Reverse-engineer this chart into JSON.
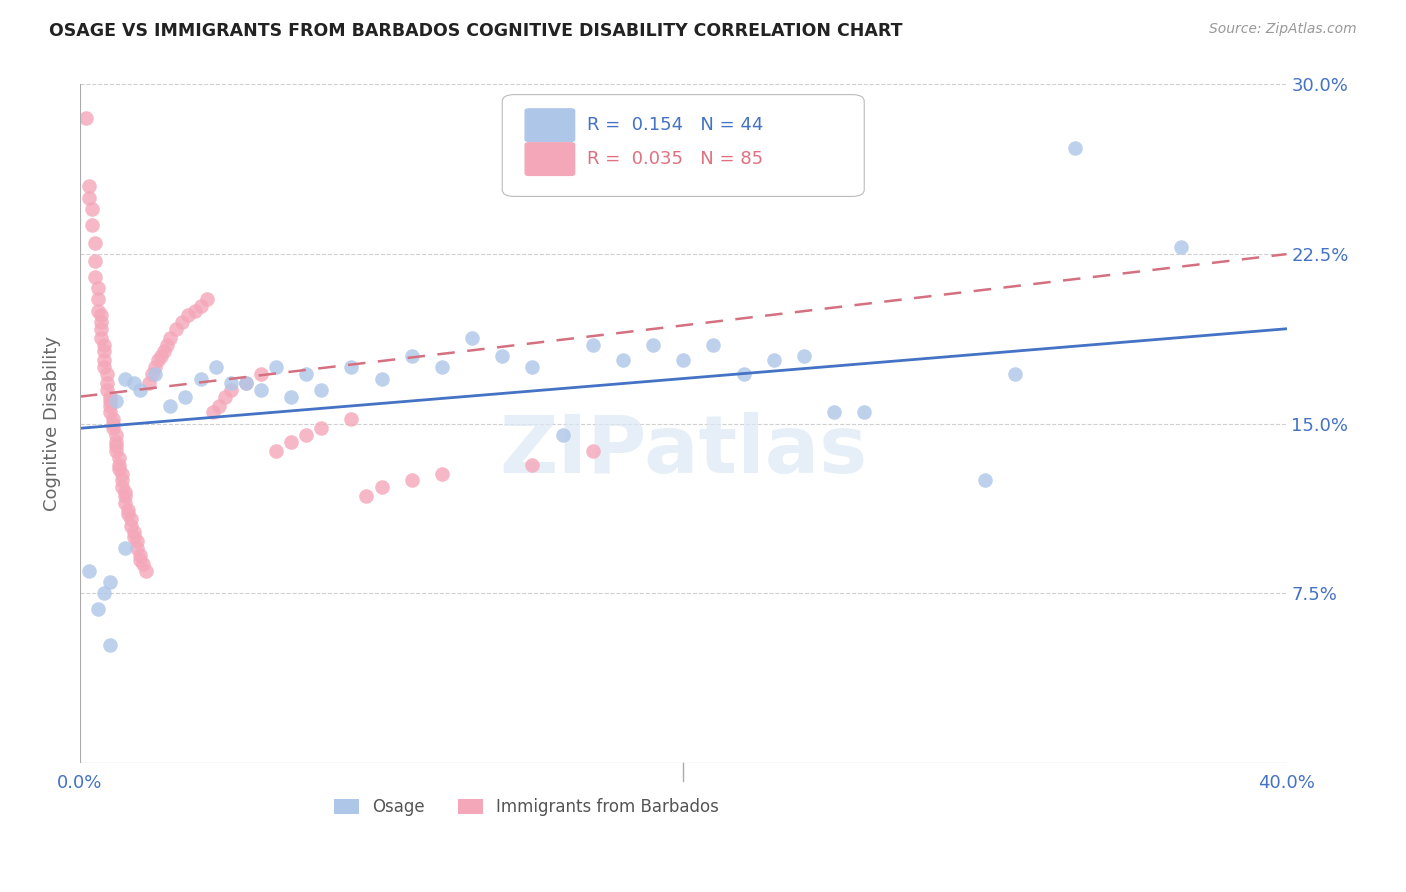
{
  "title": "OSAGE VS IMMIGRANTS FROM BARBADOS COGNITIVE DISABILITY CORRELATION CHART",
  "source": "Source: ZipAtlas.com",
  "ylabel": "Cognitive Disability",
  "xmin": 0.0,
  "xmax": 0.4,
  "ymin": 0.0,
  "ymax": 0.3,
  "ytick_positions": [
    0.0,
    0.075,
    0.15,
    0.225,
    0.3
  ],
  "ytick_labels": [
    "",
    "7.5%",
    "15.0%",
    "22.5%",
    "30.0%"
  ],
  "xtick_positions": [
    0.0,
    0.05,
    0.1,
    0.15,
    0.2,
    0.25,
    0.3,
    0.35,
    0.4
  ],
  "xtick_labels": [
    "0.0%",
    "",
    "",
    "",
    "",
    "",
    "",
    "",
    "40.0%"
  ],
  "watermark": "ZIPatlas",
  "osage_color": "#aec6e8",
  "barbados_color": "#f4a7b9",
  "osage_line_color": "#4472c4",
  "barbados_line_color": "#d47080",
  "osage_N": 44,
  "barbados_N": 85,
  "osage_x": [
    0.003,
    0.006,
    0.008,
    0.01,
    0.012,
    0.015,
    0.018,
    0.02,
    0.025,
    0.03,
    0.035,
    0.04,
    0.045,
    0.05,
    0.055,
    0.06,
    0.065,
    0.07,
    0.075,
    0.08,
    0.09,
    0.1,
    0.11,
    0.12,
    0.13,
    0.14,
    0.15,
    0.16,
    0.17,
    0.18,
    0.19,
    0.2,
    0.21,
    0.22,
    0.23,
    0.24,
    0.25,
    0.26,
    0.3,
    0.31,
    0.33,
    0.365,
    0.01,
    0.015
  ],
  "osage_y": [
    0.085,
    0.068,
    0.075,
    0.052,
    0.16,
    0.17,
    0.168,
    0.165,
    0.172,
    0.158,
    0.162,
    0.17,
    0.175,
    0.168,
    0.168,
    0.165,
    0.175,
    0.162,
    0.172,
    0.165,
    0.175,
    0.17,
    0.18,
    0.175,
    0.188,
    0.18,
    0.175,
    0.145,
    0.185,
    0.178,
    0.185,
    0.178,
    0.185,
    0.172,
    0.178,
    0.18,
    0.155,
    0.155,
    0.125,
    0.172,
    0.272,
    0.228,
    0.08,
    0.095
  ],
  "barbados_x": [
    0.002,
    0.003,
    0.003,
    0.004,
    0.004,
    0.005,
    0.005,
    0.005,
    0.006,
    0.006,
    0.006,
    0.007,
    0.007,
    0.007,
    0.007,
    0.008,
    0.008,
    0.008,
    0.008,
    0.009,
    0.009,
    0.009,
    0.01,
    0.01,
    0.01,
    0.01,
    0.011,
    0.011,
    0.011,
    0.012,
    0.012,
    0.012,
    0.012,
    0.013,
    0.013,
    0.013,
    0.014,
    0.014,
    0.014,
    0.015,
    0.015,
    0.015,
    0.016,
    0.016,
    0.017,
    0.017,
    0.018,
    0.018,
    0.019,
    0.019,
    0.02,
    0.02,
    0.021,
    0.022,
    0.023,
    0.024,
    0.025,
    0.026,
    0.027,
    0.028,
    0.029,
    0.03,
    0.032,
    0.034,
    0.036,
    0.038,
    0.04,
    0.042,
    0.044,
    0.046,
    0.048,
    0.05,
    0.055,
    0.06,
    0.065,
    0.07,
    0.075,
    0.08,
    0.09,
    0.095,
    0.1,
    0.11,
    0.12,
    0.15,
    0.17
  ],
  "barbados_y": [
    0.285,
    0.255,
    0.25,
    0.245,
    0.238,
    0.23,
    0.222,
    0.215,
    0.21,
    0.205,
    0.2,
    0.198,
    0.195,
    0.192,
    0.188,
    0.185,
    0.182,
    0.178,
    0.175,
    0.172,
    0.168,
    0.165,
    0.162,
    0.16,
    0.158,
    0.155,
    0.152,
    0.15,
    0.148,
    0.145,
    0.142,
    0.14,
    0.138,
    0.135,
    0.132,
    0.13,
    0.128,
    0.125,
    0.122,
    0.12,
    0.118,
    0.115,
    0.112,
    0.11,
    0.108,
    0.105,
    0.102,
    0.1,
    0.098,
    0.095,
    0.092,
    0.09,
    0.088,
    0.085,
    0.168,
    0.172,
    0.175,
    0.178,
    0.18,
    0.182,
    0.185,
    0.188,
    0.192,
    0.195,
    0.198,
    0.2,
    0.202,
    0.205,
    0.155,
    0.158,
    0.162,
    0.165,
    0.168,
    0.172,
    0.138,
    0.142,
    0.145,
    0.148,
    0.152,
    0.118,
    0.122,
    0.125,
    0.128,
    0.132,
    0.138
  ]
}
